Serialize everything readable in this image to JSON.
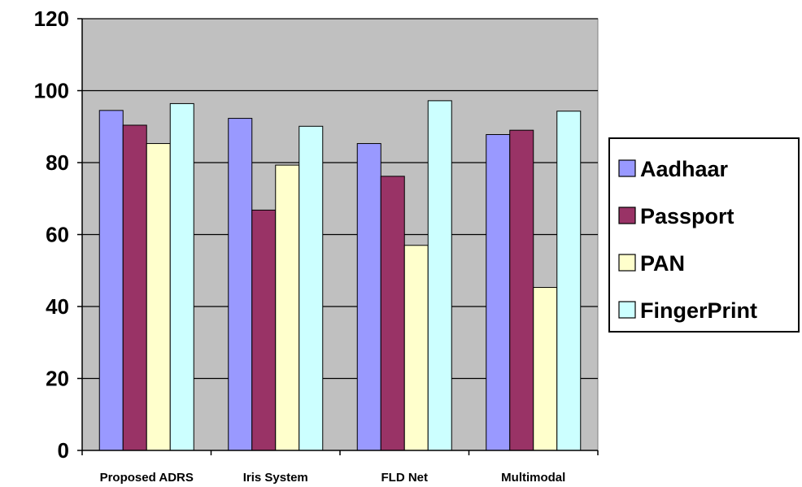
{
  "chart_data": {
    "type": "bar",
    "title": "",
    "xlabel": "",
    "ylabel": "",
    "categories": [
      "Proposed ADRS",
      "Iris System",
      "FLD Net",
      "Multimodal"
    ],
    "series": [
      {
        "name": "Aadhaar",
        "color": "#9999ff",
        "values": [
          94.5,
          92.3,
          85.3,
          87.8
        ]
      },
      {
        "name": "Passport",
        "color": "#993366",
        "values": [
          90.4,
          66.8,
          76.2,
          89.0
        ]
      },
      {
        "name": "PAN",
        "color": "#ffffcc",
        "values": [
          85.3,
          79.3,
          57.0,
          45.3
        ]
      },
      {
        "name": "FingerPrint",
        "color": "#ccffff",
        "values": [
          96.4,
          90.1,
          97.2,
          94.3
        ]
      }
    ],
    "ylim": [
      0,
      120
    ],
    "yticks": [
      0,
      20,
      40,
      60,
      80,
      100,
      120
    ],
    "ytick_labels": [
      "0",
      "20",
      "40",
      "60",
      "80",
      "100",
      "120"
    ],
    "grid": true,
    "plot_background": "#c0c0c0",
    "legend_position": "right"
  }
}
